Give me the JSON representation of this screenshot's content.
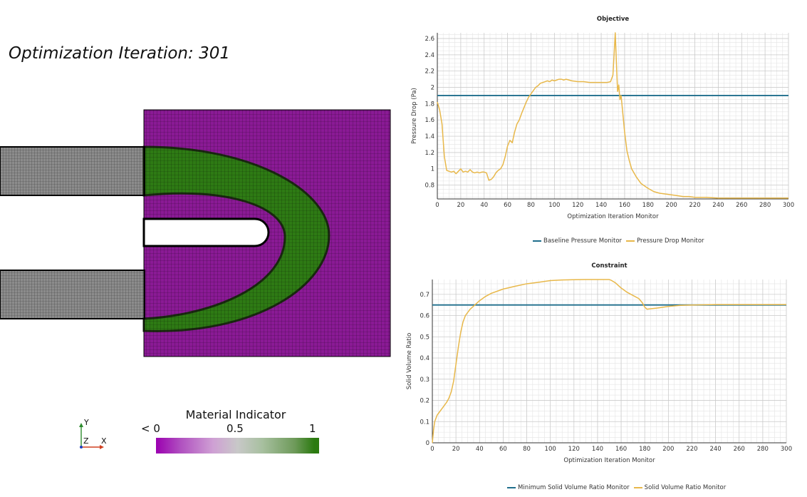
{
  "view": {
    "iteration_label": "Optimization Iteration:",
    "iteration_value": "301",
    "colors": {
      "solid": "#7a1a8a",
      "fluid": "#2e7d12",
      "inlet_mesh": "#8a8a8a"
    }
  },
  "color_legend": {
    "title": "Material Indicator",
    "tick_min": "< 0",
    "tick_mid": "0.5",
    "tick_max": "1"
  },
  "triad": {
    "y": "Y",
    "z": "Z",
    "x": "X"
  },
  "chart_data": [
    {
      "type": "line",
      "title": "Objective",
      "xlabel": "Optimization Iteration Monitor",
      "ylabel": "Pressure Drop (Pa)",
      "xlim": [
        0,
        300
      ],
      "ylim": [
        0.63,
        2.67
      ],
      "xticks": [
        0,
        20,
        40,
        60,
        80,
        100,
        120,
        140,
        160,
        180,
        200,
        220,
        240,
        260,
        280,
        300
      ],
      "yticks": [
        0.8,
        1,
        1.2,
        1.4,
        1.6,
        1.8,
        2,
        2.2,
        2.4,
        2.6
      ],
      "grid": true,
      "legend_position": "bottom",
      "series": [
        {
          "name": "Baseline Pressure Monitor",
          "color": "#1f6e8c",
          "x": [
            0,
            300
          ],
          "y": [
            1.9,
            1.9
          ]
        },
        {
          "name": "Pressure Drop Monitor",
          "color": "#e8b84a",
          "x": [
            0,
            2,
            4,
            6,
            8,
            10,
            12,
            14,
            16,
            18,
            20,
            22,
            24,
            26,
            28,
            30,
            32,
            34,
            36,
            38,
            40,
            42,
            44,
            46,
            48,
            50,
            52,
            54,
            56,
            58,
            60,
            62,
            64,
            66,
            68,
            70,
            72,
            74,
            76,
            78,
            80,
            82,
            84,
            86,
            88,
            90,
            92,
            94,
            96,
            98,
            100,
            102,
            104,
            106,
            108,
            110,
            115,
            120,
            125,
            130,
            135,
            140,
            145,
            148,
            150,
            151,
            152,
            153,
            154,
            155,
            156,
            157,
            158,
            160,
            162,
            164,
            166,
            168,
            170,
            172,
            174,
            176,
            178,
            180,
            185,
            190,
            195,
            200,
            205,
            210,
            215,
            220,
            225,
            230,
            240,
            250,
            260,
            270,
            280,
            290,
            300
          ],
          "y": [
            1.82,
            1.72,
            1.55,
            1.15,
            0.98,
            0.97,
            0.96,
            0.97,
            0.94,
            0.97,
            1.0,
            0.96,
            0.97,
            0.96,
            0.99,
            0.96,
            0.95,
            0.96,
            0.95,
            0.96,
            0.96,
            0.95,
            0.86,
            0.87,
            0.9,
            0.95,
            0.98,
            1.0,
            1.05,
            1.15,
            1.28,
            1.35,
            1.32,
            1.45,
            1.55,
            1.6,
            1.68,
            1.75,
            1.82,
            1.88,
            1.92,
            1.96,
            2.0,
            2.02,
            2.05,
            2.06,
            2.07,
            2.08,
            2.07,
            2.09,
            2.08,
            2.09,
            2.1,
            2.1,
            2.09,
            2.1,
            2.08,
            2.07,
            2.07,
            2.06,
            2.06,
            2.06,
            2.06,
            2.07,
            2.15,
            2.4,
            2.67,
            2.3,
            1.95,
            2.03,
            1.85,
            1.9,
            1.75,
            1.45,
            1.22,
            1.1,
            1.0,
            0.95,
            0.9,
            0.86,
            0.82,
            0.8,
            0.78,
            0.76,
            0.72,
            0.7,
            0.69,
            0.68,
            0.67,
            0.66,
            0.66,
            0.65,
            0.65,
            0.65,
            0.64,
            0.64,
            0.64,
            0.64,
            0.64,
            0.64,
            0.64
          ]
        }
      ]
    },
    {
      "type": "line",
      "title": "Constraint",
      "xlabel": "Optimization Iteration Monitor",
      "ylabel": "Solid Volume Ratio",
      "xlim": [
        0,
        300
      ],
      "ylim": [
        0,
        0.77
      ],
      "xticks": [
        0,
        20,
        40,
        60,
        80,
        100,
        120,
        140,
        160,
        180,
        200,
        220,
        240,
        260,
        280,
        300
      ],
      "yticks": [
        0,
        0.1,
        0.2,
        0.3,
        0.4,
        0.5,
        0.6,
        0.7
      ],
      "grid": true,
      "legend_position": "bottom",
      "series": [
        {
          "name": "Minimum Solid Volume Ratio Monitor",
          "color": "#1f6e8c",
          "x": [
            0,
            300
          ],
          "y": [
            0.65,
            0.65
          ]
        },
        {
          "name": "Solid Volume Ratio Monitor",
          "color": "#e8b84a",
          "x": [
            0,
            1,
            2,
            4,
            6,
            8,
            10,
            12,
            14,
            16,
            18,
            20,
            22,
            24,
            26,
            28,
            30,
            32,
            34,
            36,
            38,
            40,
            45,
            50,
            55,
            60,
            70,
            80,
            90,
            100,
            110,
            120,
            130,
            140,
            145,
            150,
            152,
            155,
            160,
            165,
            170,
            175,
            178,
            180,
            182,
            185,
            190,
            200,
            210,
            220,
            240,
            260,
            280,
            300
          ],
          "y": [
            0.0,
            0.06,
            0.1,
            0.13,
            0.145,
            0.16,
            0.175,
            0.19,
            0.21,
            0.24,
            0.29,
            0.37,
            0.45,
            0.52,
            0.57,
            0.6,
            0.615,
            0.63,
            0.64,
            0.65,
            0.66,
            0.67,
            0.69,
            0.705,
            0.715,
            0.725,
            0.738,
            0.75,
            0.757,
            0.765,
            0.768,
            0.769,
            0.77,
            0.77,
            0.77,
            0.77,
            0.765,
            0.755,
            0.73,
            0.71,
            0.695,
            0.68,
            0.66,
            0.64,
            0.63,
            0.632,
            0.635,
            0.643,
            0.648,
            0.65,
            0.652,
            0.652,
            0.652,
            0.652
          ]
        }
      ]
    }
  ]
}
